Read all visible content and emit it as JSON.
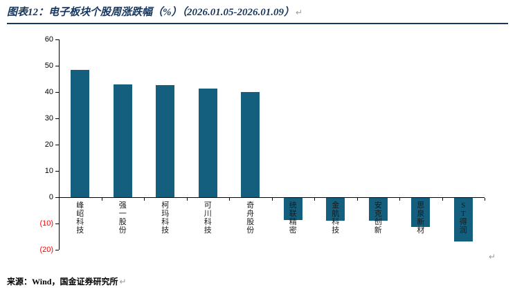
{
  "page": {
    "title": "图表12：电子板块个股周涨跌幅（%）（2026.01.05-2026.01.09）",
    "return_mark": "↵",
    "footer": "来源：Wind，国金证券研究所"
  },
  "colors": {
    "bar": "#145F7D",
    "title": "#17375E",
    "rule": "#17375E",
    "negative_tick": "#FF0000",
    "axis": "#000000"
  },
  "chart_data": {
    "type": "bar",
    "title": "电子板块个股周涨跌幅（%）（2026.01.05-2026.01.09）",
    "categories": [
      "峰岹科技",
      "强一股份",
      "柯玛科技",
      "可川科技",
      "奇舟股份",
      "统联精密",
      "金航科技",
      "安克创新",
      "思泉新材",
      "ST得润"
    ],
    "values": [
      48.4,
      43.0,
      42.7,
      41.3,
      40.0,
      -8.3,
      -8.6,
      -8.7,
      -11.0,
      -16.5
    ],
    "xlabel": "",
    "ylabel": "",
    "ylim": [
      -20,
      60
    ],
    "yticks": [
      60,
      50,
      40,
      30,
      20,
      10,
      0,
      -10,
      -20
    ],
    "ytick_labels": [
      "60",
      "50",
      "40",
      "30",
      "20",
      "10",
      "0",
      "(10)",
      "(20)"
    ],
    "grid": false,
    "legend": "none",
    "bar_color": "#145F7D"
  }
}
